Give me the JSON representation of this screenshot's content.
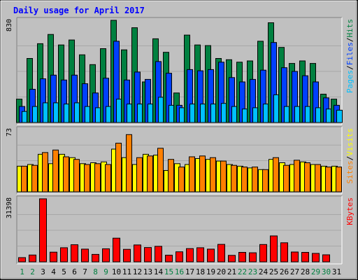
{
  "chart_data": {
    "type": "bar",
    "title": "Daily usage for April 2017",
    "categories": [
      "1",
      "2",
      "3",
      "4",
      "5",
      "6",
      "7",
      "8",
      "9",
      "10",
      "11",
      "12",
      "13",
      "14",
      "15",
      "16",
      "17",
      "18",
      "19",
      "20",
      "21",
      "22",
      "23",
      "24",
      "25",
      "26",
      "27",
      "28",
      "29",
      "30",
      "31"
    ],
    "weekend_days": [
      "1",
      "2",
      "8",
      "9",
      "15",
      "16",
      "22",
      "23",
      "29",
      "30"
    ],
    "panels": [
      {
        "name": "hits-files-pages",
        "ymax_label": "830",
        "ymax": 830,
        "legend": [
          "Pages",
          "/",
          "Files",
          "/",
          "Hits"
        ],
        "series": [
          {
            "name": "Hits",
            "color": "#008040",
            "values": [
              190,
              520,
              640,
              715,
              630,
              670,
              550,
              470,
              600,
              830,
              590,
              770,
              330,
              680,
              570,
              240,
              710,
              630,
              625,
              520,
              510,
              490,
              500,
              660,
              810,
              610,
              480,
              500,
              480,
              230,
              190
            ]
          },
          {
            "name": "Files",
            "color": "#0040ff",
            "values": [
              130,
              270,
              355,
              385,
              345,
              385,
              315,
              240,
              360,
              660,
              345,
              410,
              350,
              495,
              400,
              140,
              430,
              420,
              430,
              490,
              365,
              330,
              350,
              425,
              650,
              445,
              415,
              380,
              330,
              200,
              140
            ]
          },
          {
            "name": "Pages",
            "color": "#00c0ff",
            "values": [
              90,
              130,
              160,
              160,
              150,
              160,
              130,
              120,
              130,
              190,
              150,
              150,
              150,
              205,
              140,
              120,
              150,
              150,
              150,
              155,
              130,
              110,
              120,
              150,
              225,
              130,
              130,
              130,
              120,
              110,
              100
            ]
          }
        ]
      },
      {
        "name": "visits-sites",
        "ymax_label": "73",
        "ymax": 73,
        "legend": [
          "Sites",
          "/",
          "Visits"
        ],
        "series": [
          {
            "name": "Visits",
            "color": "#ffff00",
            "values": [
              30,
              32,
              44,
              33,
              44,
              40,
              33,
              34,
              35,
              50,
              40,
              32,
              44,
              43,
              25,
              33,
              32,
              39,
              38,
              36,
              32,
              30,
              28,
              26,
              38,
              34,
              32,
              35,
              32,
              30,
              30
            ]
          },
          {
            "name": "Sites",
            "color": "#ff8000",
            "values": [
              30,
              31,
              46,
              49,
              41,
              38,
              32,
              33,
              32,
              57,
              67,
              40,
              42,
              51,
              38,
              29,
              41,
              42,
              40,
              36,
              31,
              29,
              29,
              26,
              40,
              31,
              37,
              34,
              32,
              29,
              29
            ]
          }
        ]
      },
      {
        "name": "kbytes",
        "ymax_label": "31398",
        "ymax": 31398,
        "legend": [
          "KBytes"
        ],
        "series": [
          {
            "name": "KBytes",
            "color": "#ff0000",
            "values": [
              2100,
              3400,
              31398,
              4800,
              7000,
              8500,
              6300,
              3700,
              6500,
              11800,
              6200,
              8400,
              7100,
              7700,
              3300,
              5000,
              6600,
              7000,
              6300,
              8700,
              3200,
              4700,
              4500,
              8600,
              12900,
              9500,
              4900,
              4700,
              4200,
              3500,
              0
            ]
          }
        ]
      }
    ]
  },
  "colors": {
    "frame_bg": "#c0c0c0",
    "plot_bg": "#c0c0c0",
    "title": "#0000ff",
    "weekday_label": "#000000",
    "weekend_label": "#008040"
  }
}
